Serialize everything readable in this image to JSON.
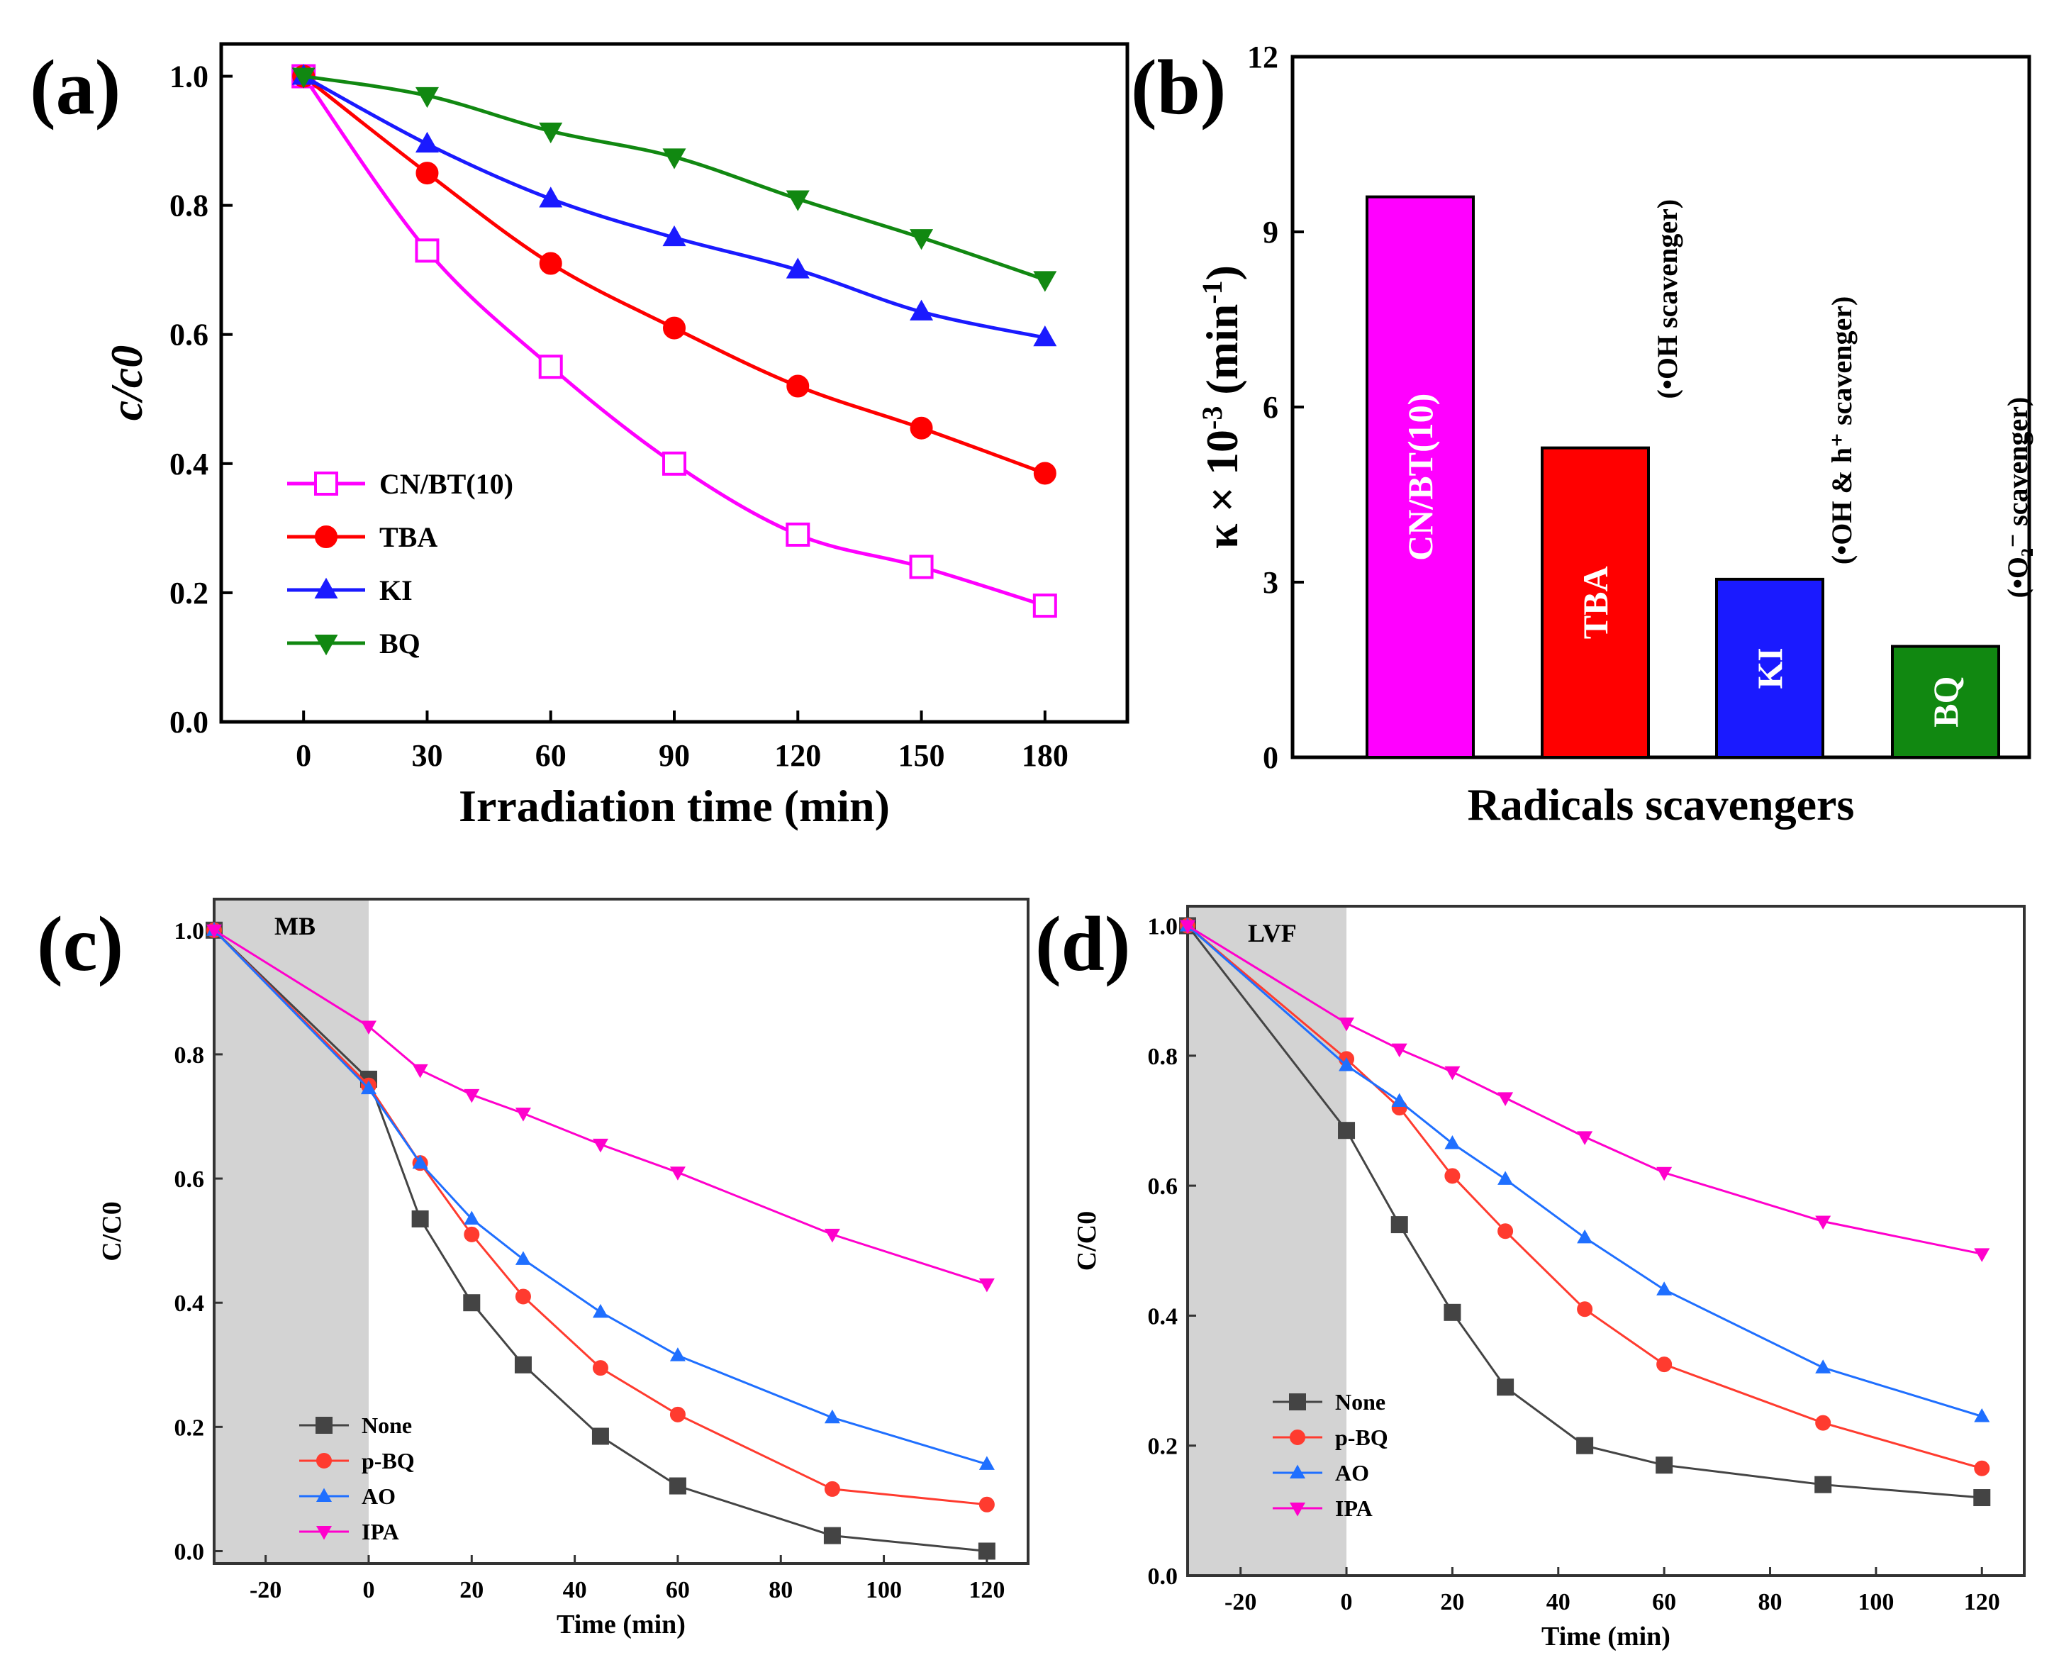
{
  "chart_data": [
    {
      "panel": "(a)",
      "type": "line",
      "xlabel": "Irradiation time (min)",
      "ylabel": "c/c0",
      "xlim": [
        -20,
        200
      ],
      "ylim": [
        0.0,
        1.05
      ],
      "xticks": [
        "0",
        "30",
        "60",
        "90",
        "120",
        "150",
        "180"
      ],
      "yticks": [
        "0.0",
        "0.2",
        "0.4",
        "0.6",
        "0.8",
        "1.0"
      ],
      "legend_position": "bottom-left",
      "x": [
        0,
        30,
        60,
        90,
        120,
        150,
        180
      ],
      "series": [
        {
          "name": "CN/BT(10)",
          "color": "#ff00ff",
          "marker": "square-open",
          "values": [
            1.0,
            0.73,
            0.55,
            0.4,
            0.29,
            0.24,
            0.18
          ]
        },
        {
          "name": "TBA",
          "color": "#ff0000",
          "marker": "circle",
          "values": [
            1.0,
            0.85,
            0.71,
            0.61,
            0.52,
            0.455,
            0.385
          ]
        },
        {
          "name": "KI",
          "color": "#1a1aff",
          "marker": "triangle-up",
          "values": [
            1.0,
            0.895,
            0.81,
            0.75,
            0.7,
            0.635,
            0.595
          ]
        },
        {
          "name": "BQ",
          "color": "#118811",
          "marker": "triangle-down",
          "values": [
            1.0,
            0.97,
            0.915,
            0.875,
            0.81,
            0.75,
            0.685
          ]
        }
      ]
    },
    {
      "panel": "(b)",
      "type": "bar",
      "xlabel": "Radicals scavengers",
      "ylabel_main": "κ × 10",
      "ylabel_exp": "-3",
      "ylabel_unit": "(min",
      "ylabel_unit_exp": "-1",
      "ylabel_close": ")",
      "ylim": [
        0,
        12
      ],
      "yticks": [
        "0",
        "3",
        "6",
        "9",
        "12"
      ],
      "categories": [
        "CN/BT(10)",
        "TBA",
        "KI",
        "BQ"
      ],
      "values": [
        9.6,
        5.3,
        3.05,
        1.9
      ],
      "colors": [
        "#ff00ff",
        "#ff0000",
        "#1a1aff",
        "#118811"
      ],
      "notes": [
        "",
        "(•OH scavenger)",
        "(•OH & h⁺ scavenger)",
        "(•O₂⁻ scavenger)"
      ]
    },
    {
      "panel": "(c)",
      "type": "line",
      "tag": "MB",
      "xlabel": "Time (min)",
      "ylabel": "C/C0",
      "xlim": [
        -30,
        128
      ],
      "ylim": [
        -0.02,
        1.05
      ],
      "xticks": [
        "-20",
        "0",
        "20",
        "40",
        "60",
        "80",
        "100",
        "120"
      ],
      "yticks": [
        "0.0",
        "0.2",
        "0.4",
        "0.6",
        "0.8",
        "1.0"
      ],
      "shaded_xrange": [
        -30,
        0
      ],
      "legend_position": "bottom-left",
      "x": [
        -30,
        0,
        10,
        20,
        30,
        45,
        60,
        90,
        120
      ],
      "series": [
        {
          "name": "None",
          "color": "#444444",
          "marker": "square",
          "values": [
            1.0,
            0.76,
            0.535,
            0.4,
            0.3,
            0.185,
            0.105,
            0.025,
            0.0
          ]
        },
        {
          "name": "p-BQ",
          "color": "#ff3b2f",
          "marker": "circle",
          "values": [
            1.0,
            0.75,
            0.625,
            0.51,
            0.41,
            0.295,
            0.22,
            0.1,
            0.075
          ]
        },
        {
          "name": "AO",
          "color": "#1f6fff",
          "marker": "triangle-up",
          "values": [
            1.0,
            0.745,
            0.625,
            0.535,
            0.47,
            0.385,
            0.315,
            0.215,
            0.14
          ]
        },
        {
          "name": "IPA",
          "color": "#ff00cc",
          "marker": "triangle-down",
          "values": [
            1.0,
            0.845,
            0.775,
            0.735,
            0.705,
            0.655,
            0.61,
            0.51,
            0.43
          ]
        }
      ]
    },
    {
      "panel": "(d)",
      "type": "line",
      "tag": "LVF",
      "xlabel": "Time (min)",
      "ylabel": "C/C0",
      "xlim": [
        -30,
        128
      ],
      "ylim": [
        0.0,
        1.03
      ],
      "xticks": [
        "-20",
        "0",
        "20",
        "40",
        "60",
        "80",
        "100",
        "120"
      ],
      "yticks": [
        "0.0",
        "0.2",
        "0.4",
        "0.6",
        "0.8",
        "1.0"
      ],
      "shaded_xrange": [
        -30,
        0
      ],
      "legend_position": "bottom-left",
      "x": [
        -30,
        0,
        10,
        20,
        30,
        45,
        60,
        90,
        120
      ],
      "series": [
        {
          "name": "None",
          "color": "#444444",
          "marker": "square",
          "values": [
            1.0,
            0.685,
            0.54,
            0.405,
            0.29,
            0.2,
            0.17,
            0.14,
            0.12
          ]
        },
        {
          "name": "p-BQ",
          "color": "#ff3b2f",
          "marker": "circle",
          "values": [
            1.0,
            0.795,
            0.72,
            0.615,
            0.53,
            0.41,
            0.325,
            0.235,
            0.165
          ]
        },
        {
          "name": "AO",
          "color": "#1f6fff",
          "marker": "triangle-up",
          "values": [
            1.0,
            0.785,
            0.73,
            0.665,
            0.61,
            0.52,
            0.44,
            0.32,
            0.245
          ]
        },
        {
          "name": "IPA",
          "color": "#ff00cc",
          "marker": "triangle-down",
          "values": [
            1.0,
            0.85,
            0.81,
            0.775,
            0.735,
            0.675,
            0.62,
            0.545,
            0.495
          ]
        }
      ]
    }
  ]
}
